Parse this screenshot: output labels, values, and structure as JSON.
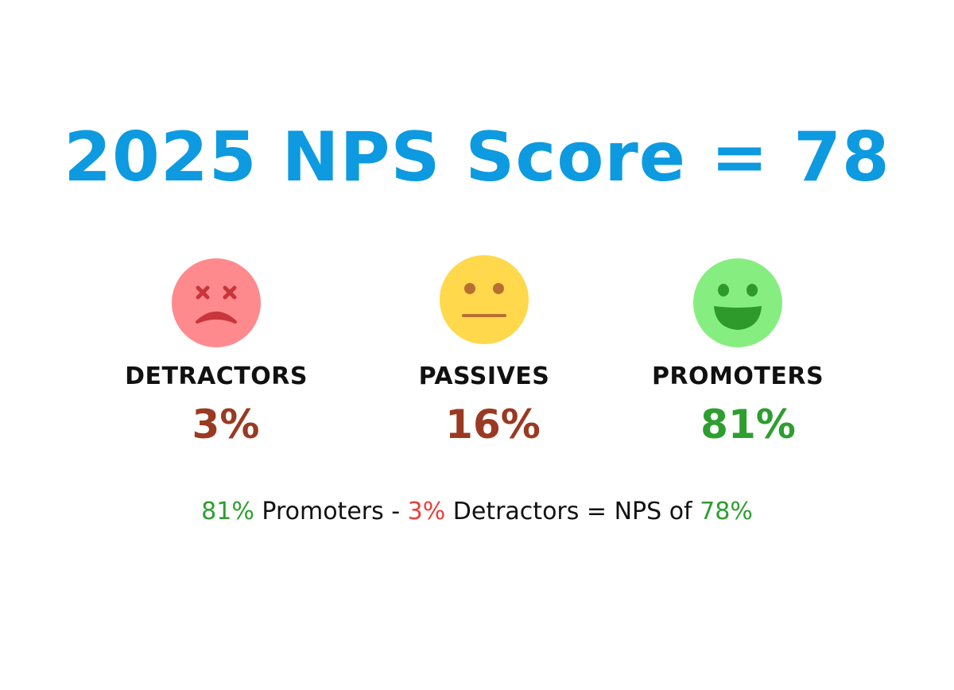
{
  "title": "2025 NPS Score = 78",
  "colors": {
    "title": "#0d9ae0",
    "detractor_face": "#ff8a8e",
    "detractor_feature": "#c8353a",
    "passive_face": "#ffd84c",
    "passive_feature": "#b86f32",
    "promoter_face": "#86ee80",
    "promoter_feature": "#2f9a2c",
    "brown_pct": "#9a3a22",
    "green_pct": "#2e9e30",
    "formula_green": "#2e9e30",
    "formula_red": "#e8403a"
  },
  "categories": [
    {
      "label": "DETRACTORS",
      "percent": "3%",
      "icon": "dizzy-sad-face-icon"
    },
    {
      "label": "PASSIVES",
      "percent": "16%",
      "icon": "neutral-face-icon"
    },
    {
      "label": "PROMOTERS",
      "percent": "81%",
      "icon": "smiling-face-icon"
    }
  ],
  "formula": {
    "promoters_pct": "81%",
    "promoters_text": " Promoters - ",
    "detractors_pct": "3%",
    "detractors_text": " Detractors = NPS of ",
    "result_pct": "78%"
  }
}
